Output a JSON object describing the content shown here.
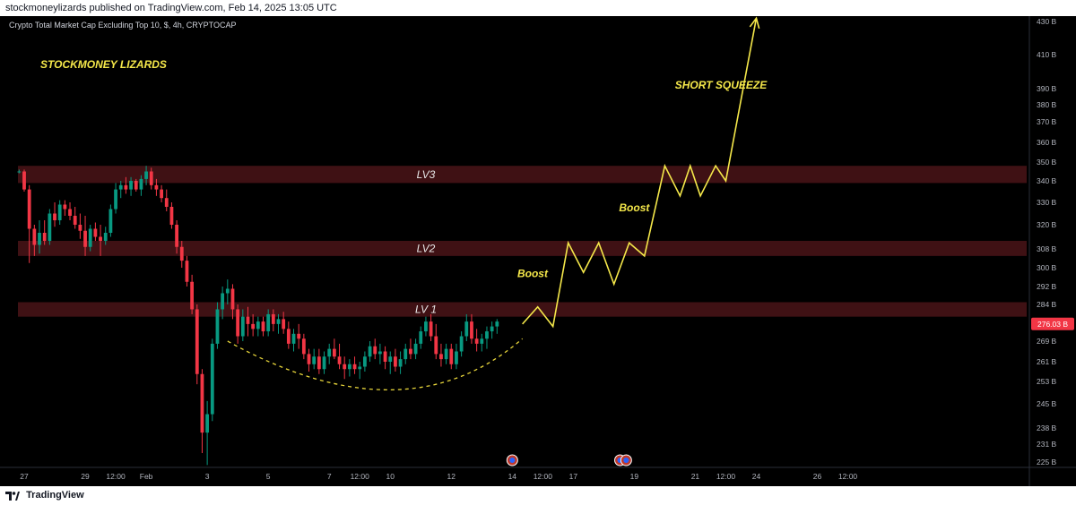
{
  "header": {
    "published": "stockmoneylizards published on TradingView.com, Feb 14, 2025 13:05 UTC"
  },
  "footer": {
    "brand": "TradingView",
    "logo_icon": "tradingview-logo-icon"
  },
  "chart_data": {
    "type": "candlestick",
    "title": "Crypto Total Market Cap Excluding Top 10, $, 4h, CRYPTOCAP",
    "watermark": "STOCKMONEY LIZARDS",
    "current_price_label": "276.03 B",
    "current_price": 276.03,
    "y_ticks": [
      {
        "v": 430,
        "label": "430 B"
      },
      {
        "v": 410,
        "label": "410 B"
      },
      {
        "v": 390,
        "label": "390 B"
      },
      {
        "v": 380,
        "label": "380 B"
      },
      {
        "v": 370,
        "label": "370 B"
      },
      {
        "v": 360,
        "label": "360 B"
      },
      {
        "v": 350,
        "label": "350 B"
      },
      {
        "v": 340,
        "label": "340 B"
      },
      {
        "v": 330,
        "label": "330 B"
      },
      {
        "v": 320,
        "label": "320 B"
      },
      {
        "v": 308,
        "label": "308 B"
      },
      {
        "v": 300,
        "label": "300 B"
      },
      {
        "v": 292,
        "label": "292 B"
      },
      {
        "v": 284,
        "label": "284 B"
      },
      {
        "v": 269,
        "label": "269 B"
      },
      {
        "v": 261,
        "label": "261 B"
      },
      {
        "v": 253,
        "label": "253 B"
      },
      {
        "v": 245,
        "label": "245 B"
      },
      {
        "v": 238,
        "label": "238 B"
      },
      {
        "v": 231,
        "label": "231 B"
      },
      {
        "v": 225,
        "label": "225 B"
      }
    ],
    "x_ticks": [
      {
        "pos": 0,
        "label": "27"
      },
      {
        "pos": 12,
        "label": "29"
      },
      {
        "pos": 18,
        "label": "12:00"
      },
      {
        "pos": 24,
        "label": "Feb"
      },
      {
        "pos": 36,
        "label": "3"
      },
      {
        "pos": 48,
        "label": "5"
      },
      {
        "pos": 60,
        "label": "7"
      },
      {
        "pos": 66,
        "label": "12:00"
      },
      {
        "pos": 72,
        "label": "10"
      },
      {
        "pos": 84,
        "label": "12"
      },
      {
        "pos": 96,
        "label": "14"
      },
      {
        "pos": 102,
        "label": "12:00"
      },
      {
        "pos": 108,
        "label": "17"
      },
      {
        "pos": 120,
        "label": "19"
      },
      {
        "pos": 132,
        "label": "21"
      },
      {
        "pos": 138,
        "label": "12:00"
      },
      {
        "pos": 144,
        "label": "24"
      },
      {
        "pos": 156,
        "label": "26"
      },
      {
        "pos": 162,
        "label": "12:00"
      }
    ],
    "zones": [
      {
        "label": "LV3",
        "low": 339,
        "high": 348
      },
      {
        "label": "LV2",
        "low": 305,
        "high": 312
      },
      {
        "label": "LV 1",
        "low": 279,
        "high": 285
      }
    ],
    "annotations": [
      {
        "text": "Boost",
        "x": 97,
        "y": 296
      },
      {
        "text": "Boost",
        "x": 117,
        "y": 326
      },
      {
        "text": "SHORT SQUEEZE",
        "x": 128,
        "y": 390
      }
    ],
    "projection": [
      [
        98,
        276
      ],
      [
        101,
        283
      ],
      [
        104,
        275
      ],
      [
        107,
        311
      ],
      [
        110,
        298
      ],
      [
        113,
        311
      ],
      [
        116,
        293
      ],
      [
        119,
        311
      ],
      [
        122,
        305
      ],
      [
        126,
        348
      ],
      [
        129,
        333
      ],
      [
        131,
        348
      ],
      [
        133,
        333
      ],
      [
        136,
        348
      ],
      [
        138,
        340
      ],
      [
        144,
        432
      ]
    ],
    "arc": {
      "from": [
        40,
        269
      ],
      "via": [
        72,
        250
      ],
      "to": [
        98,
        270
      ]
    },
    "candles": [
      [
        -1,
        345,
        346,
        344,
        345
      ],
      [
        0,
        345,
        346,
        335,
        336
      ],
      [
        1,
        336,
        338,
        302,
        318
      ],
      [
        2,
        318,
        320,
        305,
        310
      ],
      [
        3,
        310,
        322,
        306,
        316
      ],
      [
        4,
        316,
        322,
        310,
        312
      ],
      [
        5,
        312,
        327,
        310,
        325
      ],
      [
        6,
        325,
        330,
        319,
        322
      ],
      [
        7,
        322,
        331,
        320,
        329
      ],
      [
        8,
        329,
        331,
        324,
        327
      ],
      [
        9,
        327,
        330,
        322,
        324
      ],
      [
        10,
        324,
        328,
        318,
        320
      ],
      [
        11,
        320,
        325,
        313,
        317
      ],
      [
        12,
        317,
        324,
        305,
        309
      ],
      [
        13,
        309,
        320,
        307,
        318
      ],
      [
        14,
        318,
        321,
        312,
        314
      ],
      [
        15,
        314,
        320,
        305,
        312
      ],
      [
        16,
        312,
        319,
        310,
        316
      ],
      [
        17,
        316,
        329,
        314,
        327
      ],
      [
        18,
        327,
        339,
        325,
        336
      ],
      [
        19,
        336,
        340,
        332,
        338
      ],
      [
        20,
        338,
        342,
        334,
        336
      ],
      [
        21,
        336,
        342,
        333,
        340
      ],
      [
        22,
        340,
        341,
        335,
        336
      ],
      [
        23,
        336,
        343,
        333,
        341
      ],
      [
        24,
        341,
        348,
        338,
        345
      ],
      [
        25,
        345,
        347,
        336,
        338
      ],
      [
        26,
        338,
        341,
        333,
        336
      ],
      [
        27,
        336,
        338,
        330,
        332
      ],
      [
        28,
        332,
        336,
        326,
        328
      ],
      [
        29,
        328,
        330,
        318,
        320
      ],
      [
        30,
        320,
        322,
        306,
        309
      ],
      [
        31,
        309,
        312,
        300,
        303
      ],
      [
        32,
        303,
        305,
        292,
        294
      ],
      [
        33,
        294,
        297,
        280,
        282
      ],
      [
        34,
        282,
        284,
        252,
        256
      ],
      [
        35,
        256,
        258,
        228,
        236
      ],
      [
        36,
        236,
        246,
        224,
        242
      ],
      [
        37,
        242,
        270,
        240,
        268
      ],
      [
        38,
        268,
        285,
        266,
        282
      ],
      [
        39,
        282,
        292,
        278,
        289
      ],
      [
        40,
        289,
        295,
        284,
        291
      ],
      [
        41,
        291,
        293,
        278,
        282
      ],
      [
        42,
        282,
        284,
        268,
        271
      ],
      [
        43,
        271,
        282,
        269,
        279
      ],
      [
        44,
        279,
        283,
        271,
        276
      ],
      [
        45,
        276,
        280,
        271,
        274
      ],
      [
        46,
        274,
        279,
        271,
        277
      ],
      [
        47,
        277,
        279,
        271,
        273
      ],
      [
        48,
        273,
        282,
        271,
        280
      ],
      [
        49,
        280,
        282,
        273,
        276
      ],
      [
        50,
        276,
        280,
        272,
        278
      ],
      [
        51,
        278,
        281,
        272,
        274
      ],
      [
        52,
        274,
        277,
        266,
        268
      ],
      [
        53,
        268,
        274,
        265,
        272
      ],
      [
        54,
        272,
        276,
        266,
        270
      ],
      [
        55,
        270,
        272,
        262,
        264
      ],
      [
        56,
        264,
        266,
        257,
        260
      ],
      [
        57,
        260,
        266,
        258,
        263
      ],
      [
        58,
        263,
        266,
        256,
        258
      ],
      [
        59,
        258,
        265,
        256,
        263
      ],
      [
        60,
        263,
        268,
        260,
        266
      ],
      [
        61,
        266,
        270,
        262,
        263
      ],
      [
        62,
        263,
        268,
        258,
        260
      ],
      [
        63,
        260,
        263,
        254,
        258
      ],
      [
        64,
        258,
        262,
        255,
        260
      ],
      [
        65,
        260,
        263,
        256,
        258
      ],
      [
        66,
        258,
        261,
        254,
        259
      ],
      [
        67,
        259,
        265,
        257,
        263
      ],
      [
        68,
        263,
        269,
        261,
        267
      ],
      [
        69,
        267,
        270,
        262,
        264
      ],
      [
        70,
        264,
        268,
        260,
        265
      ],
      [
        71,
        265,
        267,
        258,
        261
      ],
      [
        72,
        261,
        265,
        256,
        263
      ],
      [
        73,
        263,
        266,
        257,
        259
      ],
      [
        74,
        259,
        265,
        256,
        262
      ],
      [
        75,
        262,
        268,
        260,
        266
      ],
      [
        76,
        266,
        270,
        262,
        264
      ],
      [
        77,
        264,
        270,
        262,
        268
      ],
      [
        78,
        268,
        275,
        266,
        273
      ],
      [
        79,
        273,
        279,
        271,
        277
      ],
      [
        80,
        277,
        280,
        269,
        271
      ],
      [
        81,
        271,
        276,
        262,
        264
      ],
      [
        82,
        264,
        268,
        259,
        262
      ],
      [
        83,
        262,
        268,
        260,
        266
      ],
      [
        84,
        266,
        268,
        258,
        260
      ],
      [
        85,
        260,
        268,
        258,
        265
      ],
      [
        86,
        265,
        273,
        263,
        271
      ],
      [
        87,
        271,
        280,
        269,
        277
      ],
      [
        88,
        277,
        280,
        268,
        270
      ],
      [
        89,
        270,
        274,
        265,
        268
      ],
      [
        90,
        268,
        272,
        265,
        270
      ],
      [
        91,
        270,
        275,
        266,
        273
      ],
      [
        92,
        273,
        277,
        270,
        275
      ],
      [
        93,
        275,
        278,
        272,
        277
      ]
    ]
  }
}
